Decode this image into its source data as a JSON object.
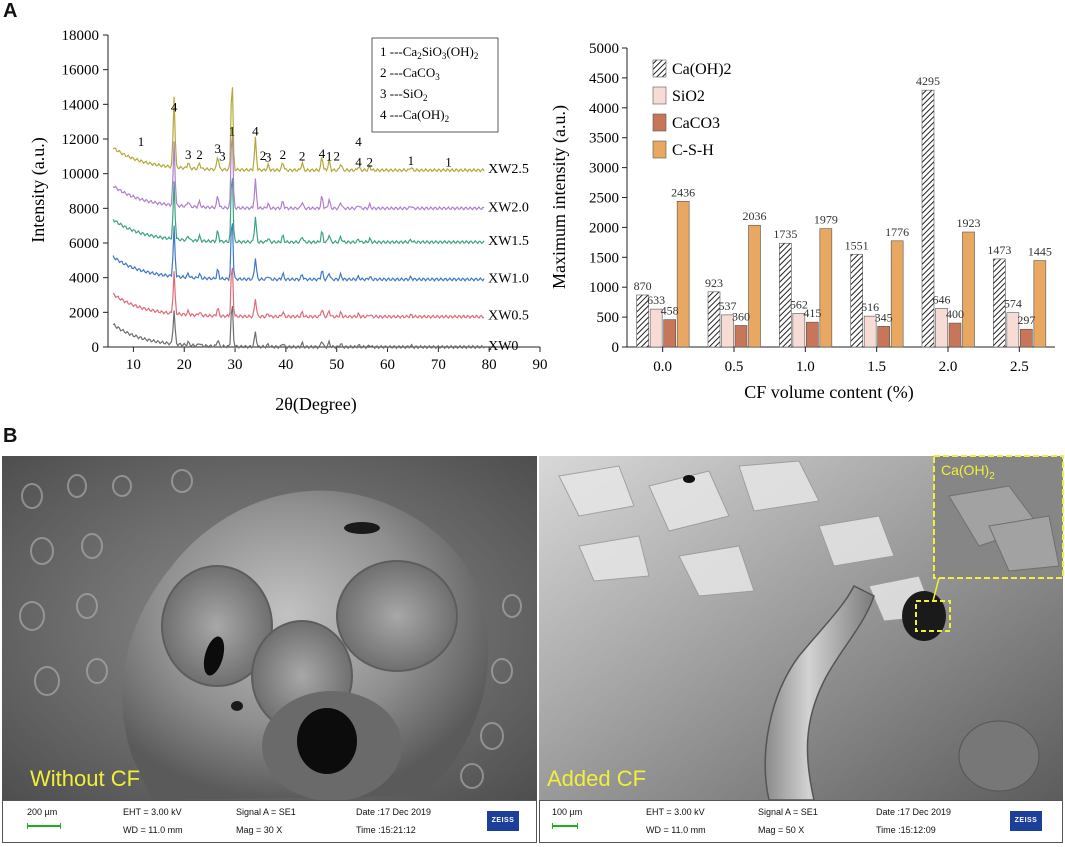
{
  "panel_a_label": "A",
  "panel_b_label": "B",
  "chart_data": [
    {
      "type": "line",
      "xlabel": "2θ(Degree)",
      "ylabel": "Intensity (a.u.)",
      "xlim": [
        5,
        90
      ],
      "ylim": [
        0,
        18000
      ],
      "xticks": [
        10,
        20,
        30,
        40,
        50,
        60,
        70,
        80,
        90
      ],
      "yticks": [
        0,
        2000,
        4000,
        6000,
        8000,
        10000,
        12000,
        14000,
        16000,
        18000
      ],
      "series": [
        {
          "name": "XW0",
          "baseline": 0,
          "color": "#6e6e6e"
        },
        {
          "name": "XW0.5",
          "baseline": 1750,
          "color": "#e06a78"
        },
        {
          "name": "XW1.0",
          "baseline": 3900,
          "color": "#3f79c8"
        },
        {
          "name": "XW1.5",
          "baseline": 6050,
          "color": "#3aa57e"
        },
        {
          "name": "XW2.0",
          "baseline": 8000,
          "color": "#b07fd0"
        },
        {
          "name": "XW2.5",
          "baseline": 10200,
          "color": "#b5a838"
        }
      ],
      "peak_labels": [
        {
          "text": "1",
          "x": 11.5,
          "y": 11600
        },
        {
          "text": "4",
          "x": 18,
          "y": 13600
        },
        {
          "text": "3",
          "x": 20.8,
          "y": 10850
        },
        {
          "text": "2",
          "x": 23,
          "y": 10850
        },
        {
          "text": "3",
          "x": 26.6,
          "y": 11200
        },
        {
          "text": "3",
          "x": 27.5,
          "y": 10750
        },
        {
          "text": "1",
          "x": 29.4,
          "y": 12200
        },
        {
          "text": "4",
          "x": 34,
          "y": 12200
        },
        {
          "text": "2",
          "x": 35.5,
          "y": 10800
        },
        {
          "text": "3",
          "x": 36.5,
          "y": 10700
        },
        {
          "text": "2",
          "x": 39.4,
          "y": 10850
        },
        {
          "text": "2",
          "x": 43.2,
          "y": 10750
        },
        {
          "text": "4",
          "x": 47.1,
          "y": 10900
        },
        {
          "text": "1",
          "x": 48.5,
          "y": 10750
        },
        {
          "text": "2",
          "x": 50,
          "y": 10750
        },
        {
          "text": "4",
          "x": 54.3,
          "y": 11600
        },
        {
          "text": "4",
          "x": 54.3,
          "y": 10400
        },
        {
          "text": "2",
          "x": 56.5,
          "y": 10400
        },
        {
          "text": "1",
          "x": 64.6,
          "y": 10500
        },
        {
          "text": "1",
          "x": 72,
          "y": 10400
        }
      ],
      "legend": [
        {
          "num": "1",
          "main": "---Ca",
          "sub1": "2",
          "mid": "SiO",
          "sub2": "3",
          "tail": "(OH)",
          "sub3": "2"
        },
        {
          "num": "2",
          "main": "---CaCO",
          "sub1": "3"
        },
        {
          "num": "3",
          "main": "---SiO",
          "sub1": "2"
        },
        {
          "num": "4",
          "main": "---Ca(OH)",
          "sub1": "2"
        }
      ],
      "legend_placement": "top-right",
      "grid": false
    },
    {
      "type": "bar",
      "xlabel": "CF volume content (%)",
      "ylabel": "Maximum intensity (a.u.)",
      "ylim": [
        0,
        5000
      ],
      "yticks": [
        0,
        500,
        1000,
        1500,
        2000,
        2500,
        3000,
        3500,
        4000,
        4500,
        5000
      ],
      "categories": [
        "0.0",
        "0.5",
        "1.0",
        "1.5",
        "2.0",
        "2.5"
      ],
      "series": [
        {
          "name": "Ca(OH)2",
          "values": [
            870,
            923,
            1735,
            1551,
            4295,
            1473
          ],
          "color": "#ffffff",
          "pattern": "hatch"
        },
        {
          "name": "SiO2",
          "values": [
            633,
            537,
            562,
            516,
            646,
            574
          ],
          "color": "#f7dcd6"
        },
        {
          "name": "CaCO3",
          "values": [
            458,
            360,
            415,
            345,
            400,
            297
          ],
          "color": "#c8765a"
        },
        {
          "name": "C-S-H",
          "values": [
            2436,
            2036,
            1979,
            1776,
            1923,
            1445
          ],
          "color": "#e9a862"
        }
      ],
      "legend_placement": "top-left",
      "grid": false
    }
  ],
  "sem_left": {
    "caption": "Without CF",
    "scale": "200 µm",
    "eht": "EHT =  3.00 kV",
    "wd": "WD = 11.0 mm",
    "signal": "Signal A = SE1",
    "mag": "Mag =     30 X",
    "date": "Date :17 Dec 2019",
    "time": "Time :15:21:12",
    "brand": "ZEISS"
  },
  "sem_right": {
    "caption": "Added CF",
    "scale": "100 µm",
    "eht": "EHT =  3.00 kV",
    "wd": "WD = 11.0 mm",
    "signal": "Signal A = SE1",
    "mag": "Mag =     50 X",
    "date": "Date :17 Dec 2019",
    "time": "Time :15:12:09",
    "brand": "ZEISS",
    "inset_label_main": "Ca(OH)",
    "inset_label_sub": "2"
  },
  "colors": {
    "sem_caption": "#f2ef3a",
    "zeiss": "#1d3f9c",
    "scalebar": "#1db01d"
  }
}
